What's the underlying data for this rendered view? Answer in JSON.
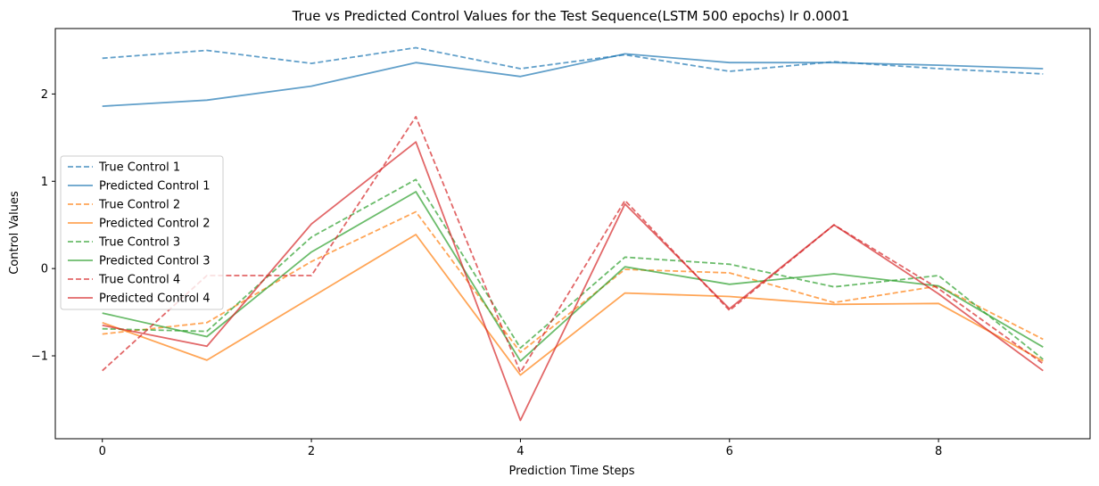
{
  "chart_data": {
    "type": "line",
    "title": "True vs Predicted Control Values for the Test Sequence(LSTM 500 epochs) lr 0.0001",
    "xlabel": "Prediction Time Steps",
    "ylabel": "Control Values",
    "xlim": [
      -0.45,
      9.45
    ],
    "ylim": [
      -1.95,
      2.75
    ],
    "xticks": [
      0,
      2,
      4,
      6,
      8
    ],
    "xtick_labels": [
      "0",
      "2",
      "4",
      "6",
      "8"
    ],
    "yticks": [
      -1,
      0,
      1,
      2
    ],
    "ytick_labels": [
      "−1",
      "0",
      "1",
      "2"
    ],
    "grid": false,
    "legend_position": "center-left",
    "x": [
      0,
      1,
      2,
      3,
      4,
      5,
      6,
      7,
      8,
      9
    ],
    "series": [
      {
        "name": "True Control 1",
        "color": "#1f77b4",
        "dashed": true,
        "values": [
          2.41,
          2.5,
          2.35,
          2.53,
          2.29,
          2.45,
          2.26,
          2.37,
          2.29,
          2.23
        ]
      },
      {
        "name": "Predicted Control 1",
        "color": "#1f77b4",
        "dashed": false,
        "values": [
          1.86,
          1.93,
          2.09,
          2.36,
          2.2,
          2.46,
          2.36,
          2.36,
          2.33,
          2.29
        ]
      },
      {
        "name": "True Control 2",
        "color": "#ff7f0e",
        "dashed": true,
        "values": [
          -0.75,
          -0.62,
          0.08,
          0.65,
          -0.96,
          -0.01,
          -0.05,
          -0.39,
          -0.2,
          -0.81
        ]
      },
      {
        "name": "Predicted Control 2",
        "color": "#ff7f0e",
        "dashed": false,
        "values": [
          -0.62,
          -1.05,
          -0.33,
          0.39,
          -1.22,
          -0.28,
          -0.32,
          -0.41,
          -0.4,
          -1.06
        ]
      },
      {
        "name": "True Control 3",
        "color": "#2ca02c",
        "dashed": true,
        "values": [
          -0.69,
          -0.72,
          0.36,
          1.02,
          -0.91,
          0.13,
          0.05,
          -0.21,
          -0.08,
          -1.04
        ]
      },
      {
        "name": "Predicted Control 3",
        "color": "#2ca02c",
        "dashed": false,
        "values": [
          -0.51,
          -0.78,
          0.19,
          0.88,
          -1.06,
          0.02,
          -0.18,
          -0.06,
          -0.2,
          -0.9
        ]
      },
      {
        "name": "True Control 4",
        "color": "#d62728",
        "dashed": true,
        "values": [
          -1.17,
          -0.08,
          -0.08,
          1.74,
          -1.19,
          0.78,
          -0.48,
          0.5,
          -0.23,
          -1.09
        ]
      },
      {
        "name": "Predicted Control 4",
        "color": "#d62728",
        "dashed": false,
        "values": [
          -0.65,
          -0.89,
          0.51,
          1.45,
          -1.74,
          0.74,
          -0.46,
          0.5,
          -0.29,
          -1.17
        ]
      }
    ]
  }
}
